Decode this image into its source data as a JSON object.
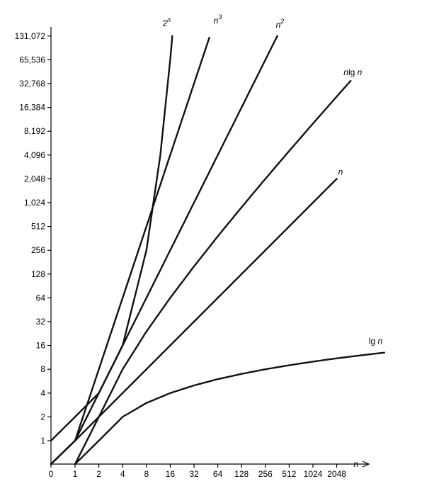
{
  "chart_data": {
    "type": "line",
    "title": "",
    "xlabel": "n",
    "ylabel": "",
    "x_ticks": [
      "0",
      "1",
      "2",
      "4",
      "8",
      "16",
      "32",
      "64",
      "128",
      "256",
      "512",
      "1024",
      "2048"
    ],
    "y_ticks": [
      "1",
      "2",
      "4",
      "8",
      "16",
      "32",
      "64",
      "128",
      "256",
      "512",
      "1,024",
      "2,048",
      "4,096",
      "8,192",
      "16,384",
      "32,768",
      "65,536",
      "131,072"
    ],
    "y_scale": "log2",
    "x_scale": "log2",
    "ylim": [
      0,
      131072
    ],
    "series": [
      {
        "name": "lg n",
        "label_main": "lg",
        "label_sup": "",
        "label_trail": "n",
        "x": [
          1,
          2,
          4,
          8,
          16,
          32,
          64,
          128,
          256,
          512,
          1024,
          2048,
          4096,
          8192
        ],
        "y": [
          0,
          1,
          2,
          3,
          4,
          5,
          6,
          7,
          8,
          9,
          10,
          11,
          12,
          13
        ]
      },
      {
        "name": "n",
        "label_main": "n",
        "label_sup": "",
        "label_trail": "",
        "x": [
          0,
          1,
          2,
          4,
          8,
          16,
          32,
          64,
          128,
          256,
          512,
          1024,
          2048
        ],
        "y": [
          0,
          1,
          2,
          4,
          8,
          16,
          32,
          64,
          128,
          256,
          512,
          1024,
          2048
        ]
      },
      {
        "name": "n lg n",
        "label_main": "n",
        "label_sup": "",
        "label_trail": "lg n",
        "x": [
          1,
          2,
          4,
          8,
          16,
          32,
          64,
          128,
          256,
          512,
          1024,
          2048,
          3072
        ],
        "y": [
          0,
          2,
          8,
          24,
          64,
          160,
          384,
          896,
          2048,
          4608,
          10240,
          22528,
          35500
        ]
      },
      {
        "name": "n^2",
        "label_main": "n",
        "label_sup": "2",
        "label_trail": "",
        "x": [
          0,
          1,
          2,
          4,
          8,
          16,
          32,
          64,
          128,
          256,
          362
        ],
        "y": [
          0,
          1,
          4,
          16,
          64,
          256,
          1024,
          4096,
          16384,
          65536,
          131072
        ]
      },
      {
        "name": "n^3",
        "label_main": "n",
        "label_sup": "3",
        "label_trail": "",
        "x": [
          0,
          1,
          2,
          4,
          8,
          16,
          32,
          50
        ],
        "y": [
          0,
          1,
          8,
          64,
          512,
          4096,
          32768,
          125000
        ]
      },
      {
        "name": "2^n",
        "label_main": "2",
        "label_sup": "n",
        "label_trail": "",
        "x": [
          0,
          1,
          2,
          4,
          8,
          12,
          16,
          17
        ],
        "y": [
          1,
          2,
          4,
          16,
          256,
          4096,
          65536,
          131072
        ]
      }
    ]
  }
}
